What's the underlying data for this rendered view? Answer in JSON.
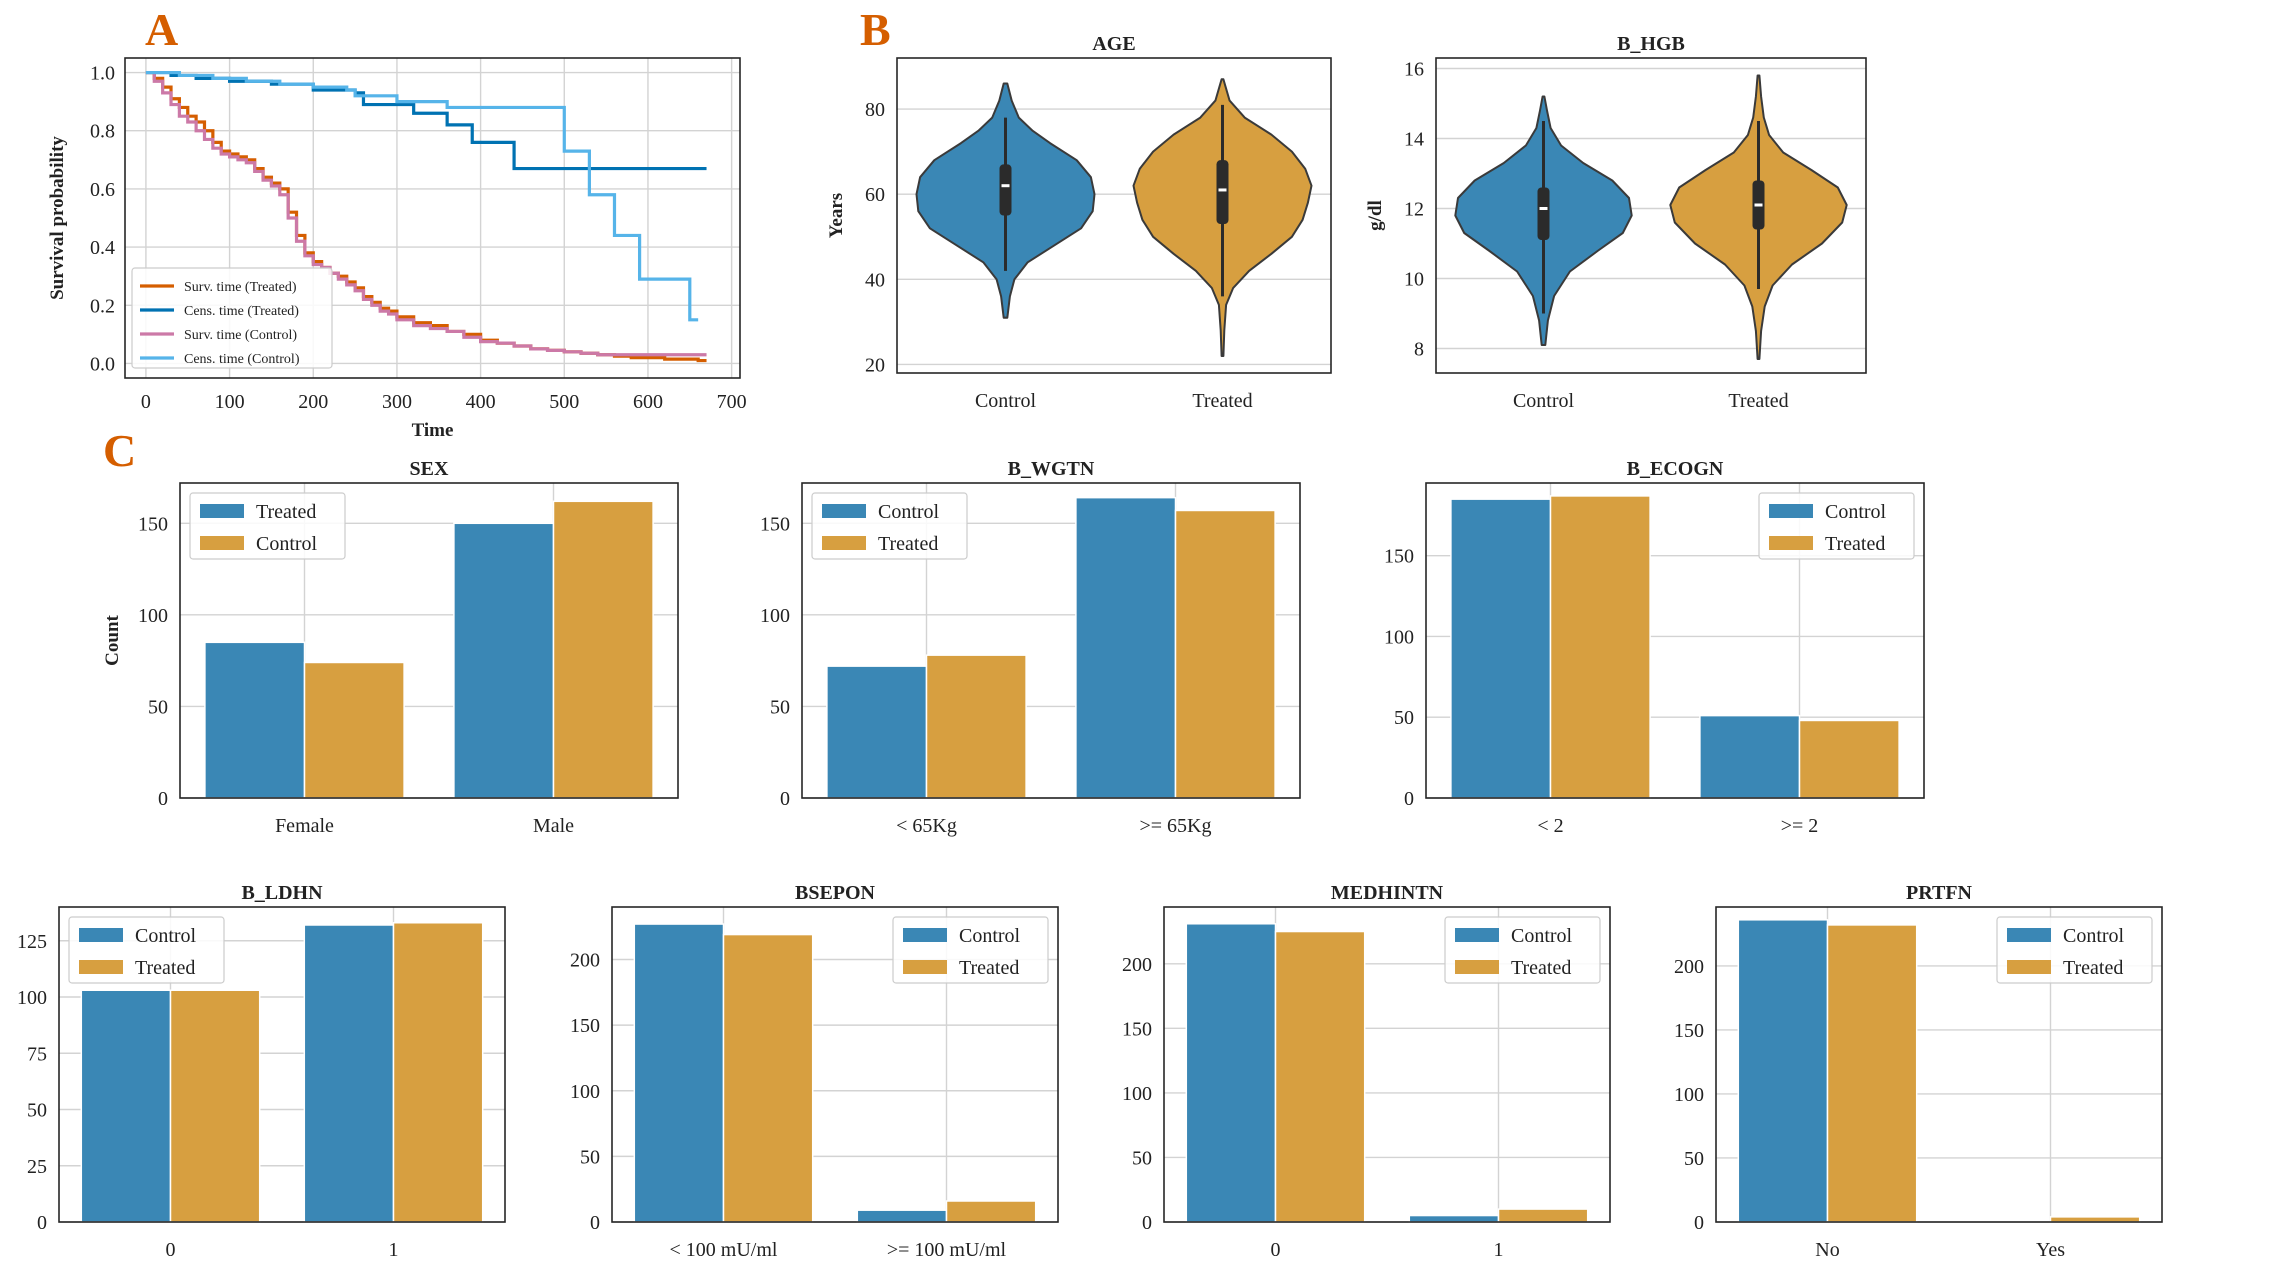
{
  "panel_labels": [
    "A",
    "B",
    "C"
  ],
  "colors": {
    "control": "#3a87b5",
    "treated": "#d79f40",
    "surv_treated": "#d55e00",
    "cens_treated": "#0072b2",
    "surv_control": "#cc79a7",
    "cens_control": "#56b4e9",
    "violin_inner": "#2b2b2b"
  },
  "chart_data": [
    {
      "id": "km",
      "type": "line",
      "title": "",
      "xlabel": "Time",
      "ylabel": "Survival probability",
      "xlim": [
        -25,
        710
      ],
      "ylim": [
        -0.05,
        1.05
      ],
      "xticks": [
        0,
        100,
        200,
        300,
        400,
        500,
        600,
        700
      ],
      "yticks": [
        0.0,
        0.2,
        0.4,
        0.6,
        0.8,
        1.0
      ],
      "ytick_labels": [
        "0.0",
        "0.2",
        "0.4",
        "0.6",
        "0.8",
        "1.0"
      ],
      "legend_position": "lower-left",
      "series": [
        {
          "name": "Surv. time (Treated)",
          "color_key": "surv_treated",
          "x": [
            0,
            10,
            20,
            30,
            40,
            50,
            60,
            70,
            80,
            90,
            100,
            110,
            120,
            130,
            140,
            150,
            160,
            170,
            180,
            190,
            200,
            210,
            220,
            230,
            240,
            250,
            260,
            270,
            280,
            290,
            300,
            320,
            340,
            360,
            380,
            400,
            420,
            440,
            460,
            480,
            500,
            520,
            540,
            560,
            580,
            600,
            620,
            640,
            660,
            670
          ],
          "y": [
            1.0,
            0.98,
            0.95,
            0.91,
            0.88,
            0.85,
            0.83,
            0.8,
            0.76,
            0.73,
            0.72,
            0.71,
            0.7,
            0.67,
            0.64,
            0.62,
            0.6,
            0.52,
            0.44,
            0.38,
            0.35,
            0.33,
            0.31,
            0.3,
            0.28,
            0.26,
            0.23,
            0.21,
            0.19,
            0.18,
            0.16,
            0.14,
            0.13,
            0.11,
            0.1,
            0.08,
            0.07,
            0.06,
            0.05,
            0.045,
            0.04,
            0.035,
            0.03,
            0.025,
            0.02,
            0.02,
            0.015,
            0.015,
            0.01,
            0.01
          ]
        },
        {
          "name": "Cens. time (Treated)",
          "color_key": "cens_treated",
          "x": [
            0,
            30,
            60,
            100,
            150,
            200,
            250,
            260,
            320,
            360,
            390,
            440,
            480,
            550,
            600,
            670
          ],
          "y": [
            1.0,
            0.99,
            0.98,
            0.97,
            0.96,
            0.94,
            0.93,
            0.89,
            0.86,
            0.82,
            0.76,
            0.67,
            0.67,
            0.67,
            0.67,
            0.67
          ]
        },
        {
          "name": "Surv. time (Control)",
          "color_key": "surv_control",
          "x": [
            0,
            10,
            20,
            30,
            40,
            50,
            60,
            70,
            80,
            90,
            100,
            110,
            120,
            130,
            140,
            150,
            160,
            170,
            180,
            190,
            200,
            210,
            220,
            230,
            240,
            250,
            260,
            270,
            280,
            290,
            300,
            320,
            340,
            360,
            380,
            400,
            420,
            440,
            460,
            480,
            500,
            520,
            540,
            560,
            580,
            600,
            620,
            640,
            660,
            670
          ],
          "y": [
            1.0,
            0.97,
            0.93,
            0.89,
            0.85,
            0.83,
            0.8,
            0.77,
            0.74,
            0.72,
            0.71,
            0.7,
            0.69,
            0.66,
            0.63,
            0.61,
            0.58,
            0.5,
            0.42,
            0.37,
            0.34,
            0.33,
            0.31,
            0.29,
            0.27,
            0.25,
            0.22,
            0.2,
            0.18,
            0.17,
            0.15,
            0.13,
            0.12,
            0.11,
            0.09,
            0.075,
            0.07,
            0.06,
            0.05,
            0.045,
            0.04,
            0.035,
            0.03,
            0.03,
            0.03,
            0.03,
            0.03,
            0.03,
            0.03,
            0.03
          ]
        },
        {
          "name": "Cens. time (Control)",
          "color_key": "cens_control",
          "x": [
            0,
            40,
            80,
            120,
            160,
            200,
            240,
            250,
            300,
            360,
            400,
            500,
            530,
            560,
            590,
            650,
            660
          ],
          "y": [
            1.0,
            0.99,
            0.98,
            0.97,
            0.96,
            0.95,
            0.94,
            0.92,
            0.9,
            0.88,
            0.88,
            0.73,
            0.58,
            0.44,
            0.29,
            0.15,
            0.15
          ]
        }
      ]
    },
    {
      "id": "age",
      "type": "violin",
      "title": "AGE",
      "xlabel": "",
      "ylabel": "Years",
      "ylim": [
        18,
        92
      ],
      "yticks": [
        20,
        40,
        60,
        80
      ],
      "categories": [
        "Control",
        "Treated"
      ],
      "color_keys": [
        "control",
        "treated"
      ],
      "violins": [
        {
          "name": "Control",
          "min": 31,
          "max": 86,
          "q1": 55,
          "median": 62,
          "q3": 67,
          "whisker_low": 42,
          "whisker_high": 78,
          "density": [
            [
              31,
              0.02
            ],
            [
              36,
              0.05
            ],
            [
              40,
              0.1
            ],
            [
              44,
              0.25
            ],
            [
              48,
              0.55
            ],
            [
              52,
              0.85
            ],
            [
              56,
              0.98
            ],
            [
              60,
              1.0
            ],
            [
              64,
              0.96
            ],
            [
              68,
              0.8
            ],
            [
              72,
              0.5
            ],
            [
              75,
              0.3
            ],
            [
              78,
              0.15
            ],
            [
              82,
              0.07
            ],
            [
              86,
              0.02
            ]
          ]
        },
        {
          "name": "Treated",
          "min": 22,
          "max": 87,
          "q1": 53,
          "median": 61,
          "q3": 68,
          "whisker_low": 36,
          "whisker_high": 81,
          "density": [
            [
              22,
              0.01
            ],
            [
              28,
              0.02
            ],
            [
              34,
              0.04
            ],
            [
              38,
              0.12
            ],
            [
              42,
              0.3
            ],
            [
              46,
              0.55
            ],
            [
              50,
              0.78
            ],
            [
              54,
              0.9
            ],
            [
              58,
              0.96
            ],
            [
              62,
              1.0
            ],
            [
              66,
              0.93
            ],
            [
              70,
              0.78
            ],
            [
              74,
              0.55
            ],
            [
              78,
              0.25
            ],
            [
              82,
              0.08
            ],
            [
              87,
              0.01
            ]
          ]
        }
      ]
    },
    {
      "id": "hgb",
      "type": "violin",
      "title": "B_HGB",
      "xlabel": "",
      "ylabel": "g/dl",
      "ylim": [
        7.3,
        16.3
      ],
      "yticks": [
        8,
        10,
        12,
        14,
        16
      ],
      "categories": [
        "Control",
        "Treated"
      ],
      "color_keys": [
        "control",
        "treated"
      ],
      "violins": [
        {
          "name": "Control",
          "min": 8.1,
          "max": 15.2,
          "q1": 11.1,
          "median": 12.0,
          "q3": 12.6,
          "whisker_low": 9.0,
          "whisker_high": 14.5,
          "density": [
            [
              8.1,
              0.02
            ],
            [
              8.8,
              0.05
            ],
            [
              9.5,
              0.12
            ],
            [
              10.2,
              0.3
            ],
            [
              10.8,
              0.62
            ],
            [
              11.3,
              0.9
            ],
            [
              11.8,
              1.0
            ],
            [
              12.3,
              0.97
            ],
            [
              12.8,
              0.78
            ],
            [
              13.3,
              0.45
            ],
            [
              13.8,
              0.2
            ],
            [
              14.3,
              0.08
            ],
            [
              14.8,
              0.04
            ],
            [
              15.2,
              0.01
            ]
          ]
        },
        {
          "name": "Treated",
          "min": 7.7,
          "max": 15.8,
          "q1": 11.4,
          "median": 12.1,
          "q3": 12.8,
          "whisker_low": 9.7,
          "whisker_high": 14.5,
          "density": [
            [
              7.7,
              0.01
            ],
            [
              8.5,
              0.03
            ],
            [
              9.2,
              0.07
            ],
            [
              9.8,
              0.16
            ],
            [
              10.4,
              0.38
            ],
            [
              11.0,
              0.72
            ],
            [
              11.6,
              0.95
            ],
            [
              12.1,
              1.0
            ],
            [
              12.6,
              0.9
            ],
            [
              13.1,
              0.6
            ],
            [
              13.6,
              0.28
            ],
            [
              14.1,
              0.12
            ],
            [
              14.6,
              0.06
            ],
            [
              15.2,
              0.03
            ],
            [
              15.8,
              0.01
            ]
          ]
        }
      ]
    },
    {
      "id": "sex",
      "type": "bar",
      "title": "SEX",
      "xlabel": "",
      "ylabel": "Count",
      "categories": [
        "Female",
        "Male"
      ],
      "ylim": [
        0,
        172
      ],
      "yticks": [
        0,
        50,
        100,
        150
      ],
      "legend_position": "upper-left",
      "series": [
        {
          "name": "Treated",
          "color_key": "control",
          "values": [
            85,
            150
          ]
        },
        {
          "name": "Control",
          "color_key": "treated",
          "values": [
            74,
            162
          ]
        }
      ]
    },
    {
      "id": "wgtn",
      "type": "bar",
      "title": "B_WGTN",
      "xlabel": "",
      "ylabel": "",
      "categories": [
        "< 65Kg",
        ">= 65Kg"
      ],
      "ylim": [
        0,
        172
      ],
      "yticks": [
        0,
        50,
        100,
        150
      ],
      "legend_position": "upper-left",
      "series": [
        {
          "name": "Control",
          "color_key": "control",
          "values": [
            72,
            164
          ]
        },
        {
          "name": "Treated",
          "color_key": "treated",
          "values": [
            78,
            157
          ]
        }
      ]
    },
    {
      "id": "ecogn",
      "type": "bar",
      "title": "B_ECOGN",
      "xlabel": "",
      "ylabel": "",
      "categories": [
        "< 2",
        ">= 2"
      ],
      "ylim": [
        0,
        195
      ],
      "yticks": [
        0,
        50,
        100,
        150
      ],
      "legend_position": "upper-right",
      "series": [
        {
          "name": "Control",
          "color_key": "control",
          "values": [
            185,
            51
          ]
        },
        {
          "name": "Treated",
          "color_key": "treated",
          "values": [
            187,
            48
          ]
        }
      ]
    },
    {
      "id": "ldhn",
      "type": "bar",
      "title": "B_LDHN",
      "xlabel": "",
      "ylabel": "",
      "categories": [
        "0",
        "1"
      ],
      "ylim": [
        0,
        140
      ],
      "yticks": [
        0,
        25,
        50,
        75,
        100,
        125
      ],
      "legend_position": "upper-left",
      "series": [
        {
          "name": "Control",
          "color_key": "control",
          "values": [
            103,
            132
          ]
        },
        {
          "name": "Treated",
          "color_key": "treated",
          "values": [
            103,
            133
          ]
        }
      ]
    },
    {
      "id": "bsepon",
      "type": "bar",
      "title": "BSEPON",
      "xlabel": "",
      "ylabel": "",
      "categories": [
        "< 100 mU/ml",
        ">= 100 mU/ml"
      ],
      "ylim": [
        0,
        240
      ],
      "yticks": [
        0,
        50,
        100,
        150,
        200
      ],
      "legend_position": "upper-right",
      "series": [
        {
          "name": "Control",
          "color_key": "control",
          "values": [
            227,
            9
          ]
        },
        {
          "name": "Treated",
          "color_key": "treated",
          "values": [
            219,
            16
          ]
        }
      ]
    },
    {
      "id": "medhintn",
      "type": "bar",
      "title": "MEDHINTN",
      "xlabel": "",
      "ylabel": "",
      "categories": [
        "0",
        "1"
      ],
      "ylim": [
        0,
        244
      ],
      "yticks": [
        0,
        50,
        100,
        150,
        200
      ],
      "legend_position": "upper-right",
      "series": [
        {
          "name": "Control",
          "color_key": "control",
          "values": [
            231,
            5
          ]
        },
        {
          "name": "Treated",
          "color_key": "treated",
          "values": [
            225,
            10
          ]
        }
      ]
    },
    {
      "id": "prtfn",
      "type": "bar",
      "title": "PRTFN",
      "xlabel": "",
      "ylabel": "",
      "categories": [
        "No",
        "Yes"
      ],
      "ylim": [
        0,
        246
      ],
      "yticks": [
        0,
        50,
        100,
        150,
        200
      ],
      "legend_position": "upper-right",
      "series": [
        {
          "name": "Control",
          "color_key": "control",
          "values": [
            236,
            0
          ]
        },
        {
          "name": "Treated",
          "color_key": "treated",
          "values": [
            232,
            4
          ]
        }
      ]
    }
  ]
}
